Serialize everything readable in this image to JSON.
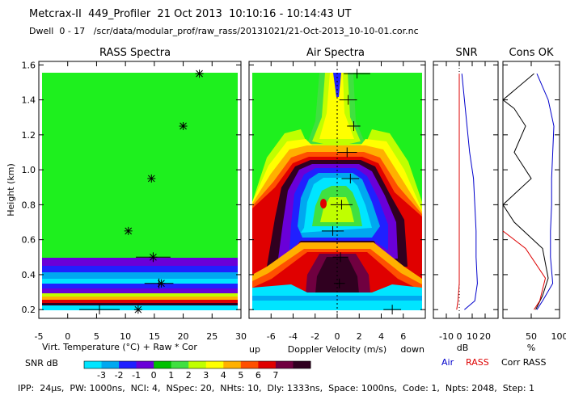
{
  "header": {
    "line1": "Metcrax-II  449_Profiler  21 Oct 2013  10:10:16 - 10:14:43 UT",
    "line2": "Dwell  0 - 17   /scr/data/modular_prof/raw_rass/20131021/21-Oct-2013_10-10-01.cor.nc"
  },
  "footer": "IPP:  24µs,  PW: 1000ns,  NCI: 4,  NSpec: 20,  NHts: 10,  Dly: 1333ns,  Space: 1000ns,  Code: 1,  Npts: 2048,  Step: 1",
  "chart_data": [
    {
      "type": "scatter",
      "title": "RASS Spectra",
      "ylabel": "Height (km)",
      "xlabel": "Virt. Temperature (°C)   + Raw   * Cor",
      "xlim": [
        -5,
        30
      ],
      "ylim": [
        0.15,
        1.62
      ],
      "xticks": [
        "-5",
        "0",
        "5",
        "10",
        "15",
        "20",
        "25",
        "30"
      ],
      "yticks": [
        "0.2",
        "0.4",
        "0.6",
        "0.8",
        "1.0",
        "1.2",
        "1.4",
        "1.6"
      ],
      "raw_points": [
        {
          "x": 5.5,
          "y": 0.2,
          "xerr": 3.5
        },
        {
          "x": 15.8,
          "y": 0.35,
          "xerr": 2.5
        },
        {
          "x": 14.8,
          "y": 0.5,
          "xerr": 3.0
        }
      ],
      "cor_points": [
        {
          "x": 12.2,
          "y": 0.2
        },
        {
          "x": 16.2,
          "y": 0.35
        },
        {
          "x": 14.8,
          "y": 0.5
        },
        {
          "x": 10.5,
          "y": 0.65
        },
        {
          "x": 14.5,
          "y": 0.95
        },
        {
          "x": 20.0,
          "y": 1.25
        },
        {
          "x": 22.8,
          "y": 1.55
        }
      ]
    },
    {
      "type": "heatmap",
      "title": "Air Spectra",
      "xlabel": "Doppler Velocity (m/s)",
      "xlabel_left": "up",
      "xlabel_right": "down",
      "xlim": [
        -8,
        8
      ],
      "ylim": [
        0.15,
        1.62
      ],
      "xticks": [
        "-6",
        "-4",
        "-2",
        "0",
        "2",
        "4",
        "6"
      ],
      "velocity_points": [
        {
          "x": 1.8,
          "y": 1.55,
          "xerr": 1.2
        },
        {
          "x": 1.0,
          "y": 1.4,
          "xerr": 0.8
        },
        {
          "x": 1.5,
          "y": 1.25,
          "xerr": 0.6
        },
        {
          "x": 0.9,
          "y": 1.1,
          "xerr": 0.9
        },
        {
          "x": 1.2,
          "y": 0.95,
          "xerr": 0.8
        },
        {
          "x": 0.4,
          "y": 0.8,
          "xerr": 1.0
        },
        {
          "x": -0.4,
          "y": 0.65,
          "xerr": 1.0
        },
        {
          "x": 0.3,
          "y": 0.5,
          "xerr": 0.7
        },
        {
          "x": 0.2,
          "y": 0.35,
          "xerr": 0.5
        },
        {
          "x": 5.0,
          "y": 0.2,
          "xerr": 0.8
        }
      ]
    },
    {
      "type": "line",
      "title": "SNR",
      "xlabel": "dB",
      "xlim": [
        -20,
        30
      ],
      "ylim": [
        0.15,
        1.62
      ],
      "xticks": [
        "-10",
        "0",
        "10",
        "20"
      ],
      "series": [
        {
          "name": "Air",
          "color": "#0000cc",
          "points": [
            [
              2,
              1.55
            ],
            [
              4,
              1.4
            ],
            [
              6,
              1.25
            ],
            [
              8,
              1.1
            ],
            [
              11,
              0.95
            ],
            [
              12,
              0.8
            ],
            [
              13,
              0.65
            ],
            [
              13,
              0.5
            ],
            [
              14,
              0.35
            ],
            [
              12,
              0.25
            ],
            [
              4,
              0.2
            ]
          ]
        },
        {
          "name": "RASS",
          "color": "#dd0000",
          "points": [
            [
              0,
              1.55
            ],
            [
              0,
              1.4
            ],
            [
              0,
              1.25
            ],
            [
              0,
              1.1
            ],
            [
              0,
              0.95
            ],
            [
              0,
              0.8
            ],
            [
              0,
              0.65
            ],
            [
              0,
              0.5
            ],
            [
              0,
              0.35
            ],
            [
              -1,
              0.25
            ],
            [
              -2,
              0.2
            ]
          ]
        }
      ]
    },
    {
      "type": "line",
      "title": "Cons OK",
      "xlabel": "%",
      "xlim": [
        0,
        100
      ],
      "ylim": [
        0.15,
        1.62
      ],
      "xticks": [
        "50",
        "100"
      ],
      "series": [
        {
          "name": "Air",
          "color": "#0000cc",
          "points": [
            [
              60,
              1.55
            ],
            [
              80,
              1.4
            ],
            [
              90,
              1.25
            ],
            [
              88,
              1.1
            ],
            [
              86,
              0.95
            ],
            [
              86,
              0.8
            ],
            [
              84,
              0.65
            ],
            [
              84,
              0.5
            ],
            [
              88,
              0.35
            ],
            [
              70,
              0.25
            ],
            [
              60,
              0.2
            ]
          ]
        },
        {
          "name": "Corr RASS",
          "color": "#000000",
          "points": [
            [
              55,
              1.55
            ],
            [
              0,
              1.4
            ],
            [
              20,
              1.35
            ],
            [
              40,
              1.25
            ],
            [
              20,
              1.1
            ],
            [
              50,
              0.95
            ],
            [
              0,
              0.8
            ],
            [
              20,
              0.7
            ],
            [
              70,
              0.55
            ],
            [
              80,
              0.38
            ],
            [
              70,
              0.28
            ],
            [
              58,
              0.2
            ]
          ]
        },
        {
          "name": "RASS",
          "color": "#dd0000",
          "points": [
            [
              0,
              0.65
            ],
            [
              40,
              0.55
            ],
            [
              75,
              0.38
            ],
            [
              65,
              0.25
            ],
            [
              55,
              0.2
            ]
          ]
        }
      ]
    }
  ],
  "colorbar": {
    "label": "SNR dB",
    "ticks": [
      "-3",
      "-2",
      "-1",
      "0",
      "1",
      "2",
      "3",
      "4",
      "5",
      "6",
      "7"
    ],
    "colors": [
      "#00e5ff",
      "#00a8f0",
      "#2020ff",
      "#6a00d8",
      "#00c000",
      "#40e040",
      "#c0ff00",
      "#ffff00",
      "#ffb000",
      "#ff5000",
      "#e00000",
      "#700040",
      "#300020"
    ]
  },
  "legend": {
    "air": "Air",
    "rass": "RASS",
    "corr_rass": "Corr RASS"
  },
  "colors": {
    "air": "#0000cc",
    "rass": "#dd0000",
    "corr": "#000000",
    "background_green": "#1ef01e"
  }
}
